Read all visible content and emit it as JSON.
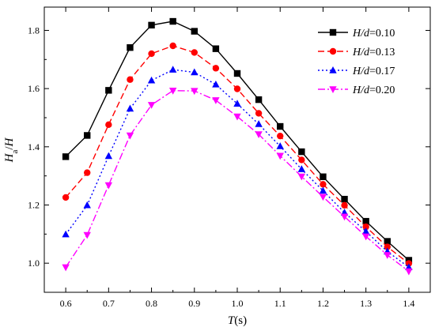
{
  "chart_data": {
    "type": "line",
    "title": "",
    "xlabel_parts": {
      "var": "T",
      "unit": "(s)"
    },
    "ylabel_parts": {
      "var": "H",
      "sub": "a",
      "slash": "/",
      "var2": "H"
    },
    "xlim": [
      0.55,
      1.45
    ],
    "ylim": [
      0.9,
      1.88
    ],
    "xticks": [
      "0.6",
      "0.7",
      "0.8",
      "0.9",
      "1.0",
      "1.1",
      "1.2",
      "1.3",
      "1.4"
    ],
    "yticks": [
      "1.0",
      "1.2",
      "1.4",
      "1.6",
      "1.8"
    ],
    "legend_position": "top-right",
    "x": [
      0.6,
      0.65,
      0.7,
      0.75,
      0.8,
      0.85,
      0.9,
      0.95,
      1.0,
      1.05,
      1.1,
      1.15,
      1.2,
      1.25,
      1.3,
      1.35,
      1.4
    ],
    "series": [
      {
        "name_var": "H/d",
        "name_value": "=0.10",
        "color": "#000000",
        "marker": "square",
        "dash": "",
        "values": [
          1.366,
          1.439,
          1.594,
          1.741,
          1.818,
          1.831,
          1.797,
          1.737,
          1.652,
          1.562,
          1.47,
          1.383,
          1.297,
          1.22,
          1.144,
          1.075,
          1.01
        ]
      },
      {
        "name_var": "H/d",
        "name_value": "=0.13",
        "color": "#ff0000",
        "marker": "circle",
        "dash": "8,4",
        "values": [
          1.226,
          1.311,
          1.476,
          1.631,
          1.72,
          1.747,
          1.724,
          1.67,
          1.599,
          1.515,
          1.437,
          1.355,
          1.271,
          1.199,
          1.125,
          1.056,
          0.999
        ]
      },
      {
        "name_var": "H/d",
        "name_value": "=0.17",
        "color": "#0000ff",
        "marker": "triangle-up",
        "dash": "2,3",
        "values": [
          1.099,
          1.199,
          1.368,
          1.531,
          1.628,
          1.665,
          1.656,
          1.614,
          1.548,
          1.478,
          1.402,
          1.323,
          1.249,
          1.174,
          1.109,
          1.04,
          0.986
        ]
      },
      {
        "name_var": "H/d",
        "name_value": "=0.20",
        "color": "#ff00ff",
        "marker": "triangle-down",
        "dash": "9,3,2,3",
        "values": [
          0.986,
          1.097,
          1.268,
          1.439,
          1.544,
          1.593,
          1.592,
          1.56,
          1.504,
          1.443,
          1.369,
          1.298,
          1.228,
          1.16,
          1.092,
          1.028,
          0.972
        ]
      }
    ]
  }
}
